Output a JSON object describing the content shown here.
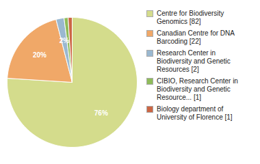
{
  "chart_data": {
    "type": "pie",
    "categories": [
      "Centre for Biodiversity\nGenomics [82]",
      "Canadian Centre for DNA\nBarcoding [22]",
      "Research Center in\nBiodiversity and Genetic\nResources [2]",
      "CIBIO, Research Center in\nBiodiversity and Genetic\nResource... [1]",
      "Biology department of\nUniversity of Florence [1]"
    ],
    "values": [
      76,
      20,
      2,
      1,
      1
    ],
    "value_labels": [
      "76%",
      "20%",
      "2%",
      null,
      null
    ],
    "colors": [
      "#d4dc8c",
      "#f0a868",
      "#9ab8d0",
      "#8fbc5a",
      "#cc6644"
    ],
    "data_labels": true,
    "legend": "right"
  }
}
